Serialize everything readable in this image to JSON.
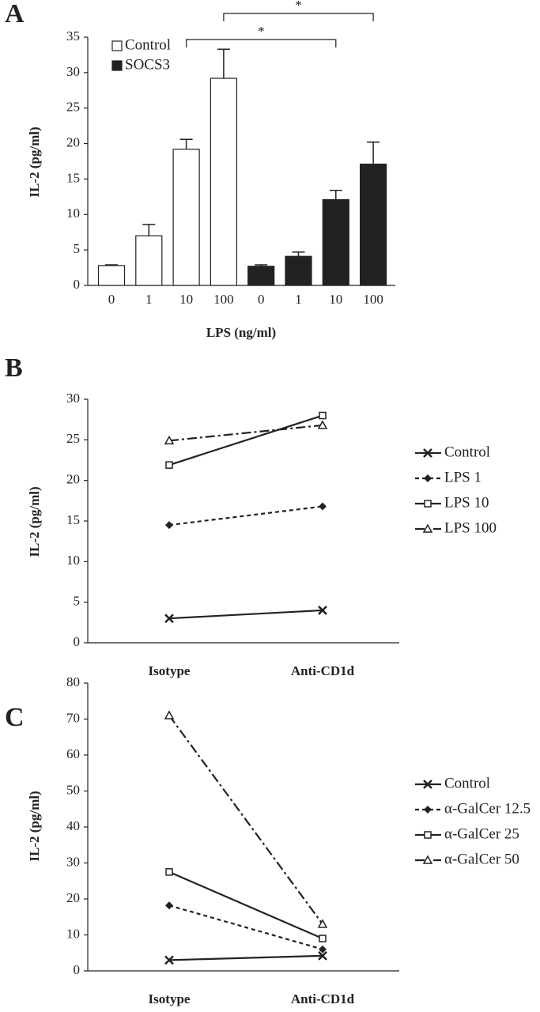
{
  "chart_data": [
    {
      "type": "bar",
      "panel": "A",
      "xlabel": "LPS (ng/ml)",
      "ylabel": "IL-2 (pg/ml)",
      "categories": [
        "0",
        "1",
        "10",
        "100"
      ],
      "series": [
        {
          "name": "Control",
          "color": "#ffffff",
          "values": [
            2.8,
            7,
            19.2,
            29.2
          ],
          "errors": [
            0.1,
            1.6,
            1.4,
            4.1
          ]
        },
        {
          "name": "SOCS3",
          "color": "#222222",
          "values": [
            2.7,
            4.1,
            12.1,
            17.1
          ],
          "errors": [
            0.2,
            0.6,
            1.3,
            3.1
          ]
        }
      ],
      "annotations": [
        "*",
        "*"
      ],
      "ylim": [
        0,
        35
      ],
      "yticks": [
        0,
        5,
        10,
        15,
        20,
        25,
        30,
        35
      ]
    },
    {
      "type": "line",
      "panel": "B",
      "ylabel": "IL-2 (pg/ml)",
      "categories": [
        "Isotype",
        "Anti-CD1d"
      ],
      "series": [
        {
          "name": "Control",
          "color": "#222222",
          "dash": "solid",
          "marker": "x",
          "values": [
            3,
            4
          ]
        },
        {
          "name": "LPS 1",
          "color": "#222222",
          "dash": "dashed",
          "marker": "diamond",
          "values": [
            14.5,
            16.8
          ]
        },
        {
          "name": "LPS 10",
          "color": "#222222",
          "dash": "solid",
          "marker": "square",
          "values": [
            21.9,
            28
          ]
        },
        {
          "name": "LPS 100",
          "color": "#222222",
          "dash": "dashdot",
          "marker": "triangle",
          "values": [
            24.9,
            26.8
          ]
        }
      ],
      "ylim": [
        0,
        30
      ],
      "yticks": [
        0,
        5,
        10,
        15,
        20,
        25,
        30
      ]
    },
    {
      "type": "line",
      "panel": "C",
      "ylabel": "IL-2 (pg/ml)",
      "categories": [
        "Isotype",
        "Anti-CD1d"
      ],
      "series": [
        {
          "name": "Control",
          "color": "#222222",
          "dash": "solid",
          "marker": "x",
          "values": [
            3,
            4.2
          ]
        },
        {
          "name": "α-GalCer 12.5",
          "color": "#222222",
          "dash": "dashed",
          "marker": "diamond",
          "values": [
            18.2,
            6
          ]
        },
        {
          "name": "α-GalCer 25",
          "color": "#222222",
          "dash": "solid",
          "marker": "square",
          "values": [
            27.5,
            9
          ]
        },
        {
          "name": "α-GalCer 50",
          "color": "#222222",
          "dash": "dashdot",
          "marker": "triangle",
          "values": [
            71,
            13
          ]
        }
      ],
      "ylim": [
        0,
        80
      ],
      "yticks": [
        0,
        10,
        20,
        30,
        40,
        50,
        60,
        70,
        80
      ]
    }
  ]
}
